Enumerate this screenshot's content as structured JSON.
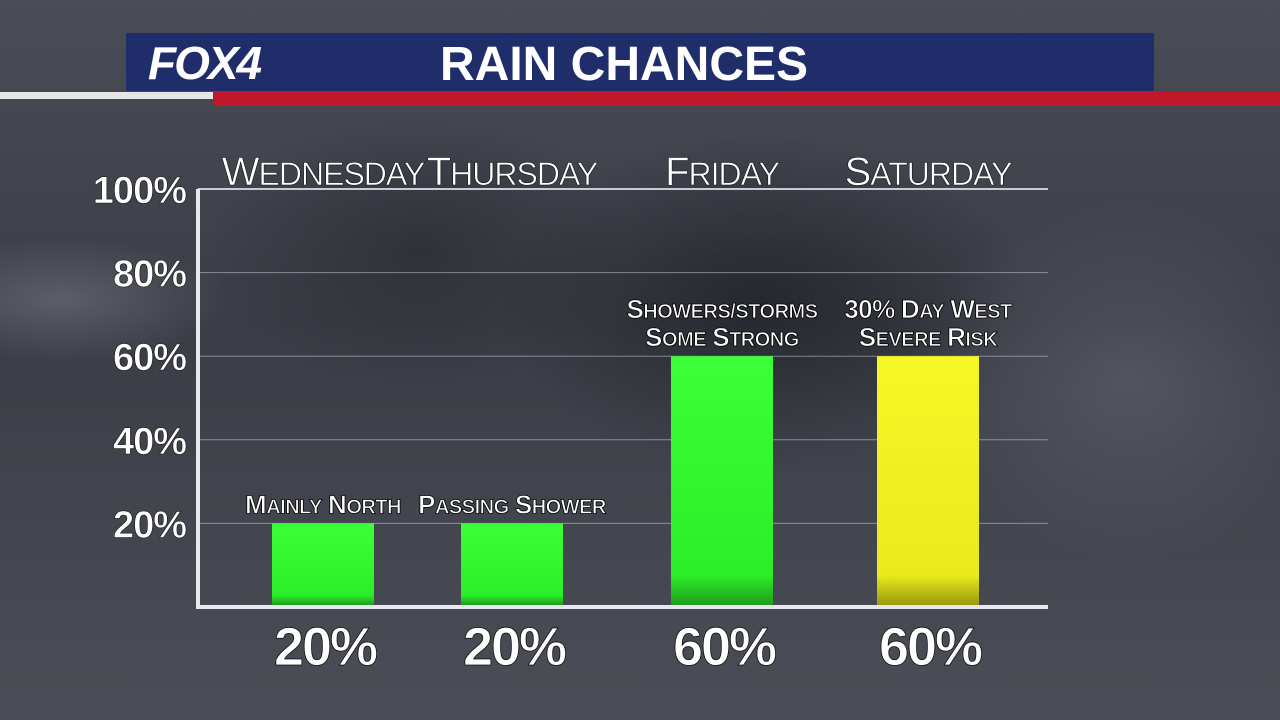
{
  "header": {
    "logo": "FOX4",
    "title": "RAIN CHANCES"
  },
  "chart_data": {
    "type": "bar",
    "title": "RAIN CHANCES",
    "categories": [
      "Wednesday",
      "Thursday",
      "Friday",
      "Saturday"
    ],
    "values": [
      20,
      20,
      60,
      60
    ],
    "value_labels": [
      "20%",
      "20%",
      "60%",
      "60%"
    ],
    "annotations": [
      [
        "Mainly North"
      ],
      [
        "Passing Shower"
      ],
      [
        "Showers/Storms",
        "Some Strong"
      ],
      [
        "30% Day West",
        "Severe Risk"
      ]
    ],
    "bar_colors": [
      "#2ff22b",
      "#2ff22b",
      "#2ff22b",
      "#f2f21e"
    ],
    "y_ticks": [
      20,
      40,
      60,
      80,
      100
    ],
    "y_tick_labels": [
      "20%",
      "40%",
      "60%",
      "80%",
      "100%"
    ],
    "ylim": [
      0,
      100
    ],
    "grid": true,
    "xlabel": "",
    "ylabel": ""
  }
}
